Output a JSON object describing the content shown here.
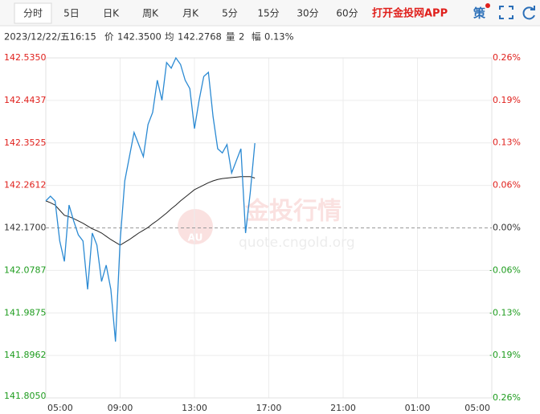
{
  "header": {
    "tabs": [
      "分时",
      "5日",
      "日K",
      "周K",
      "月K",
      "5分",
      "15分",
      "30分",
      "60分"
    ],
    "app_link": "打开金投网APP",
    "strategy": "策"
  },
  "info": {
    "datetime": "2023/12/22/五16:15",
    "price_label": "价",
    "price": "142.3500",
    "avg_label": "均",
    "avg": "142.2768",
    "volume_label": "量",
    "volume": "2",
    "change_label": "幅",
    "change": "0.13%"
  },
  "watermark": {
    "text": "金投行情",
    "url": "quote.cngold.org",
    "logo": "AU"
  },
  "chart_data": {
    "type": "line",
    "x": [
      5,
      5.25,
      5.5,
      5.75,
      6,
      6.25,
      6.5,
      6.75,
      7,
      7.25,
      7.5,
      7.75,
      8,
      8.25,
      8.5,
      8.75,
      9,
      9.25,
      9.5,
      9.75,
      10,
      10.25,
      10.5,
      10.75,
      11,
      11.25,
      11.5,
      11.75,
      12,
      12.25,
      12.5,
      12.75,
      13,
      13.25,
      13.5,
      13.75,
      14,
      14.25,
      14.5,
      14.75,
      15,
      15.25,
      15.5,
      15.75,
      16,
      16.25
    ],
    "series": [
      {
        "color": "#2b8ad3",
        "values": [
          142.228,
          142.238,
          142.228,
          142.142,
          142.098,
          142.219,
          142.185,
          142.155,
          142.142,
          142.038,
          142.159,
          142.133,
          142.055,
          142.09,
          142.038,
          141.926,
          142.142,
          142.271,
          142.323,
          142.375,
          142.349,
          142.323,
          142.392,
          142.418,
          142.487,
          142.444,
          142.525,
          142.513,
          142.535,
          142.521,
          142.487,
          142.469,
          142.383,
          142.444,
          142.495,
          142.504,
          142.409,
          142.34,
          142.331,
          142.349,
          142.288,
          142.314,
          142.34,
          142.159,
          142.245,
          142.352
        ]
      },
      {
        "color": "#222222",
        "values": [
          142.228,
          142.224,
          142.219,
          142.208,
          142.197,
          142.194,
          142.19,
          142.185,
          142.18,
          142.174,
          142.168,
          142.164,
          142.159,
          142.152,
          142.145,
          142.139,
          142.133,
          142.139,
          142.145,
          142.152,
          142.159,
          142.165,
          142.171,
          142.179,
          142.186,
          142.194,
          142.202,
          142.211,
          142.219,
          142.228,
          142.236,
          142.244,
          142.252,
          142.257,
          142.262,
          142.267,
          142.271,
          142.274,
          142.276,
          142.277,
          142.278,
          142.279,
          142.28,
          142.28,
          142.28,
          142.277
        ]
      }
    ],
    "base": 142.17,
    "xlim": [
      5,
      29
    ],
    "xticks": [
      {
        "value": 5,
        "label": "05:00"
      },
      {
        "value": 9,
        "label": "09:00"
      },
      {
        "value": 13,
        "label": "13:00"
      },
      {
        "value": 17,
        "label": "17:00"
      },
      {
        "value": 21,
        "label": "21:00"
      },
      {
        "value": 25,
        "label": "01:00"
      },
      {
        "value": 29,
        "label": "05:00"
      }
    ],
    "ylim": [
      141.805,
      142.535
    ],
    "yticks": [
      {
        "value": 142.535,
        "label": "142.5350"
      },
      {
        "value": 142.4437,
        "label": "142.4437"
      },
      {
        "value": 142.3525,
        "label": "142.3525"
      },
      {
        "value": 142.2612,
        "label": "142.2612"
      },
      {
        "value": 142.17,
        "label": "142.1700"
      },
      {
        "value": 142.0787,
        "label": "142.0787"
      },
      {
        "value": 141.9875,
        "label": "141.9875"
      },
      {
        "value": 141.8962,
        "label": "141.8962"
      },
      {
        "value": 141.805,
        "label": "141.8050"
      }
    ],
    "y2lim": [
      -0.2567,
      0.2567
    ],
    "y2ticks": [
      {
        "value": 0.2567,
        "label": "0.26%"
      },
      {
        "value": 0.1926,
        "label": "0.19%"
      },
      {
        "value": 0.1284,
        "label": "0.13%"
      },
      {
        "value": 0.0642,
        "label": "0.06%"
      },
      {
        "value": 0,
        "label": "0.00%"
      },
      {
        "value": -0.0642,
        "label": "-0.06%"
      },
      {
        "value": -0.1284,
        "label": "-0.13%"
      },
      {
        "value": -0.1926,
        "label": "-0.19%"
      },
      {
        "value": -0.2567,
        "label": "-0.26%"
      }
    ],
    "grid": true,
    "up_color": "#e0201c",
    "down_color": "#1e9c1e"
  }
}
